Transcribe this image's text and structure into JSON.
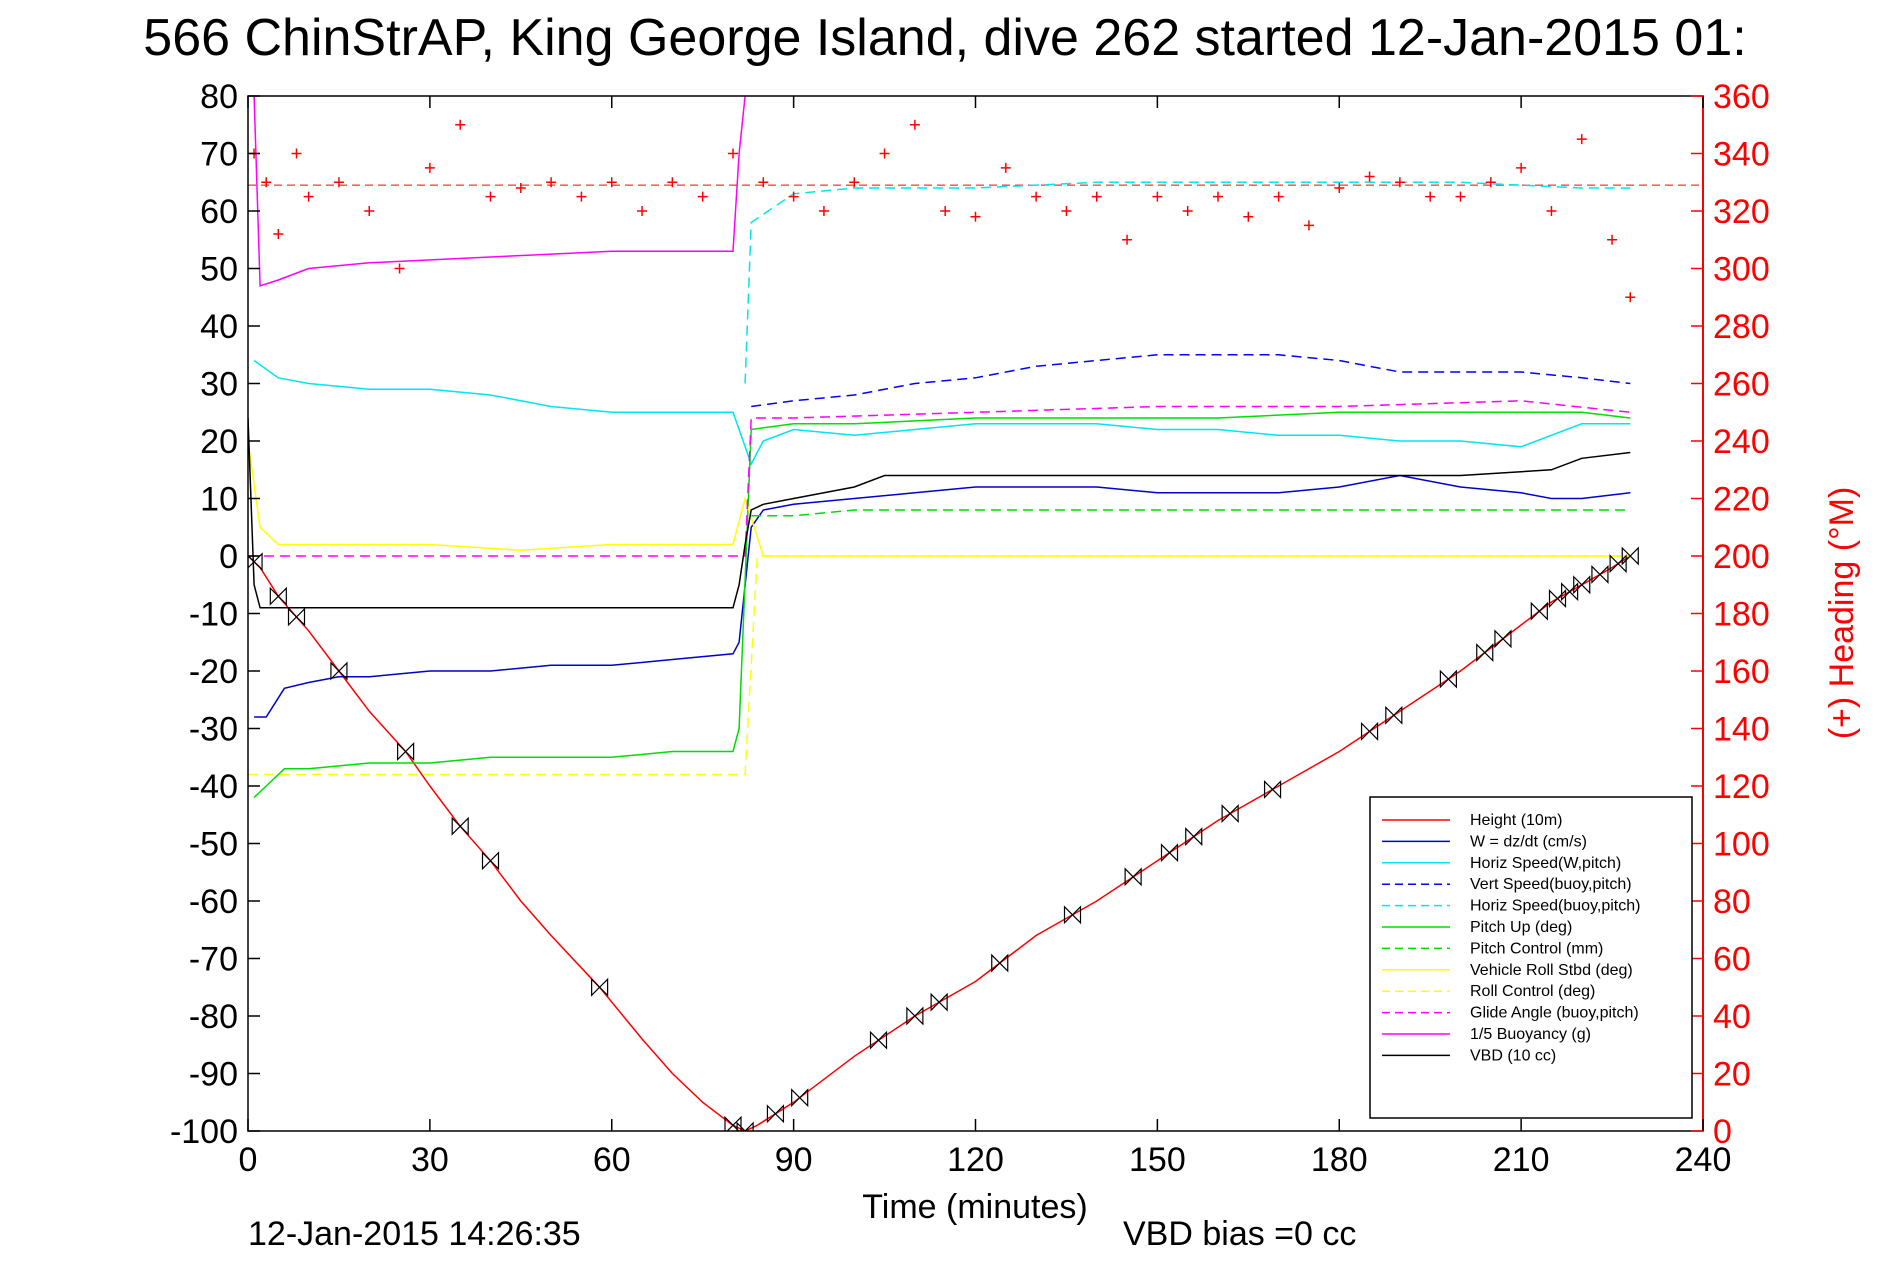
{
  "chart_data": {
    "type": "line",
    "title": "566 ChinStrAP, King George Island, dive 262 started 12-Jan-2015 01:",
    "xlabel": "Time (minutes)",
    "ylabel_right": "(+) Heading (°M)",
    "xlim": [
      0,
      240
    ],
    "ylim": [
      -100,
      80
    ],
    "ylim_right": [
      0,
      360
    ],
    "x_ticks": [
      0,
      30,
      60,
      90,
      120,
      150,
      180,
      210,
      240
    ],
    "y_ticks": [
      80,
      70,
      60,
      50,
      40,
      30,
      20,
      10,
      0,
      -10,
      -20,
      -30,
      -40,
      -50,
      -60,
      -70,
      -80,
      -90,
      -100
    ],
    "y_ticks_right": [
      360,
      340,
      320,
      300,
      280,
      260,
      240,
      220,
      200,
      180,
      160,
      140,
      120,
      100,
      80,
      60,
      40,
      20,
      0
    ],
    "grid": false,
    "legend_position": "bottom-right",
    "series": [
      {
        "name": "Height (10m)",
        "color": "#ff0000",
        "style": "solid",
        "x": [
          0,
          2,
          5,
          10,
          15,
          20,
          26,
          30,
          35,
          40,
          45,
          50,
          58,
          65,
          70,
          75,
          80,
          82,
          84,
          90,
          100,
          110,
          120,
          130,
          140,
          150,
          160,
          170,
          180,
          190,
          200,
          210,
          215,
          220,
          225,
          228
        ],
        "values": [
          0,
          -2,
          -7,
          -13,
          -20,
          -27,
          -34,
          -40,
          -47,
          -53,
          -60,
          -66,
          -75,
          -84,
          -90,
          -95,
          -99,
          -100,
          -99,
          -95,
          -87,
          -80,
          -74,
          -66,
          -60,
          -53,
          -46,
          -40,
          -34,
          -27,
          -20,
          -12,
          -8,
          -5,
          -2,
          0
        ]
      },
      {
        "name": "W = dz/dt (cm/s)",
        "color": "#0000cc",
        "style": "solid",
        "x": [
          1,
          3,
          6,
          10,
          15,
          20,
          30,
          40,
          50,
          60,
          70,
          80,
          81,
          83,
          85,
          90,
          100,
          110,
          120,
          130,
          140,
          150,
          160,
          170,
          180,
          190,
          200,
          210,
          215,
          220,
          228
        ],
        "values": [
          -28,
          -28,
          -23,
          -22,
          -21,
          -21,
          -20,
          -20,
          -19,
          -19,
          -18,
          -17,
          -15,
          5,
          8,
          9,
          10,
          11,
          12,
          12,
          12,
          11,
          11,
          11,
          12,
          14,
          12,
          11,
          10,
          10,
          11
        ]
      },
      {
        "name": "Horiz Speed(W,pitch)",
        "color": "#00e5ee",
        "style": "solid",
        "x": [
          1,
          5,
          10,
          20,
          30,
          40,
          50,
          60,
          70,
          80,
          81,
          83,
          85,
          90,
          100,
          110,
          120,
          130,
          140,
          150,
          160,
          170,
          180,
          190,
          200,
          210,
          220,
          228
        ],
        "values": [
          34,
          31,
          30,
          29,
          29,
          28,
          26,
          25,
          25,
          25,
          22,
          16,
          20,
          22,
          21,
          22,
          23,
          23,
          23,
          22,
          22,
          21,
          21,
          20,
          20,
          19,
          23,
          23
        ]
      },
      {
        "name": "Vert Speed(buoy,pitch)",
        "color": "#0000ff",
        "style": "dashed",
        "x": [
          83,
          90,
          100,
          110,
          120,
          130,
          140,
          150,
          160,
          170,
          180,
          190,
          200,
          210,
          220,
          228
        ],
        "values": [
          26,
          27,
          28,
          30,
          31,
          33,
          34,
          35,
          35,
          35,
          34,
          32,
          32,
          32,
          31,
          30
        ]
      },
      {
        "name": "Horiz Speed(buoy,pitch)",
        "color": "#00e5ee",
        "style": "dashed",
        "x": [
          82,
          83,
          90,
          100,
          120,
          140,
          160,
          180,
          200,
          220,
          228
        ],
        "values": [
          30,
          58,
          63,
          64,
          64,
          65,
          65,
          65,
          65,
          64,
          64
        ]
      },
      {
        "name": "Pitch Up (deg)",
        "color": "#00dd00",
        "style": "solid",
        "x": [
          1,
          3,
          6,
          10,
          20,
          30,
          40,
          50,
          60,
          70,
          80,
          81,
          83,
          90,
          100,
          120,
          140,
          160,
          180,
          200,
          220,
          228
        ],
        "values": [
          -42,
          -40,
          -37,
          -37,
          -36,
          -36,
          -35,
          -35,
          -35,
          -34,
          -34,
          -30,
          22,
          23,
          23,
          24,
          24,
          24,
          25,
          25,
          25,
          24
        ]
      },
      {
        "name": "Pitch Control (mm)",
        "color": "#00dd00",
        "style": "dashed",
        "x": [
          83,
          90,
          100,
          120,
          140,
          160,
          180,
          200,
          220,
          228
        ],
        "values": [
          7,
          7,
          8,
          8,
          8,
          8,
          8,
          8,
          8,
          8
        ]
      },
      {
        "name": "Vehicle Roll Stbd (deg)",
        "color": "#ffff00",
        "style": "solid",
        "x": [
          0,
          2,
          5,
          15,
          30,
          45,
          60,
          75,
          80,
          82,
          85,
          100,
          120,
          140,
          160,
          180,
          200,
          220,
          228
        ],
        "values": [
          20,
          5,
          2,
          2,
          2,
          1,
          2,
          2,
          2,
          10,
          0,
          0,
          0,
          0,
          0,
          0,
          0,
          0,
          0
        ]
      },
      {
        "name": "Roll Control (deg)",
        "color": "#ffff00",
        "style": "dashed",
        "x": [
          0,
          2,
          82,
          84,
          228
        ],
        "values": [
          -38,
          -38,
          -38,
          0,
          0
        ]
      },
      {
        "name": "Glide Angle (buoy,pitch)",
        "color": "#ff00ff",
        "style": "dashed",
        "x": [
          0,
          82,
          83,
          90,
          120,
          150,
          180,
          210,
          228
        ],
        "values": [
          0,
          0,
          24,
          24,
          25,
          26,
          26,
          27,
          25
        ]
      },
      {
        "name": "1/5 Buoyancy (g)",
        "color": "#ff00ff",
        "style": "solid",
        "x": [
          1,
          2,
          5,
          10,
          20,
          40,
          60,
          80,
          81,
          82
        ],
        "values": [
          80,
          47,
          48,
          50,
          51,
          52,
          53,
          53,
          70,
          80
        ]
      },
      {
        "name": "VBD (10 cc)",
        "color": "#000000",
        "style": "solid",
        "x": [
          0,
          1,
          2,
          80,
          81,
          82,
          83,
          85,
          90,
          100,
          105,
          140,
          170,
          200,
          215,
          220,
          228
        ],
        "values": [
          24,
          -5,
          -9,
          -9,
          -5,
          2,
          8,
          9,
          10,
          12,
          14,
          14,
          14,
          14,
          15,
          17,
          18
        ]
      },
      {
        "name": "Heading",
        "color": "#ff0000",
        "style": "markers",
        "x": [
          1,
          3,
          5,
          8,
          10,
          15,
          20,
          25,
          30,
          35,
          40,
          45,
          50,
          55,
          60,
          65,
          70,
          75,
          80,
          85,
          90,
          95,
          100,
          105,
          110,
          115,
          120,
          125,
          130,
          135,
          140,
          145,
          150,
          155,
          160,
          165,
          170,
          175,
          180,
          185,
          190,
          195,
          200,
          205,
          210,
          215,
          220,
          225,
          228
        ],
        "values": [
          340,
          330,
          312,
          340,
          325,
          330,
          320,
          300,
          335,
          350,
          325,
          328,
          330,
          325,
          330,
          320,
          330,
          325,
          340,
          330,
          325,
          320,
          330,
          340,
          350,
          320,
          318,
          335,
          325,
          320,
          325,
          310,
          325,
          320,
          325,
          318,
          325,
          315,
          328,
          332,
          330,
          325,
          325,
          330,
          335,
          320,
          345,
          310,
          290
        ]
      }
    ],
    "reference_lines": [
      {
        "axis": "right",
        "value": 329,
        "color": "#ff0000",
        "style": "dashed"
      }
    ],
    "height_markers_x": [
      1,
      5,
      8,
      15,
      26,
      35,
      40,
      58,
      80,
      82,
      87,
      91,
      104,
      110,
      114,
      124,
      136,
      146,
      152,
      156,
      162,
      169,
      185,
      189,
      198,
      204,
      207,
      213,
      216,
      218,
      220,
      223,
      226,
      228
    ]
  },
  "footer": {
    "start_time": "12-Jan-2015 14:26:35",
    "vbd_bias": "VBD bias =0 cc"
  }
}
